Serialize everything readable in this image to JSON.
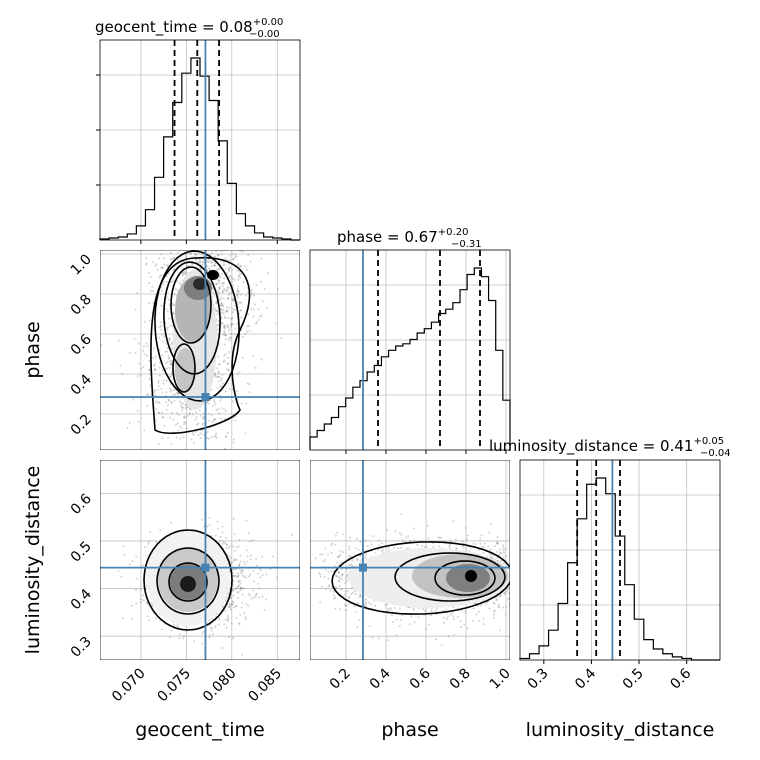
{
  "chart_data": {
    "type": "corner",
    "parameters": [
      "geocent_time",
      "phase",
      "luminosity_distance"
    ],
    "axis_labels": [
      "geocent_time",
      "phase",
      "luminosity_distance"
    ],
    "titles": [
      {
        "text": "geocent_time = 0.08",
        "sup": "+0.00",
        "sub": "−0.00"
      },
      {
        "text": "phase = 0.67",
        "sup": "+0.20",
        "sub": "−0.31"
      },
      {
        "text": "luminosity_distance = 0.41",
        "sup": "+0.05",
        "sub": "−0.04"
      }
    ],
    "ranges": [
      [
        0.0655,
        0.0875
      ],
      [
        0.02,
        1.02
      ],
      [
        0.25,
        0.67
      ]
    ],
    "ticks": {
      "geocent_time": [
        "0.070",
        "0.075",
        "0.080",
        "0.085"
      ],
      "phase": [
        "0.2",
        "0.4",
        "0.6",
        "0.8",
        "1.0"
      ],
      "luminosity_distance": [
        "0.3",
        "0.4",
        "0.5",
        "0.6"
      ]
    },
    "truths": [
      0.0771,
      0.285,
      0.444
    ],
    "quantiles": [
      [
        0.0737,
        0.0762,
        0.0786
      ],
      [
        0.36,
        0.67,
        0.87
      ],
      [
        0.37,
        0.41,
        0.46
      ]
    ],
    "histograms": [
      {
        "parameter": "geocent_time",
        "bins": [
          0.0655,
          0.0875
        ],
        "counts": [
          1,
          2,
          3,
          6,
          14,
          30,
          62,
          102,
          136,
          165,
          180,
          162,
          138,
          98,
          56,
          26,
          14,
          7,
          3,
          2,
          1,
          0
        ]
      },
      {
        "parameter": "phase",
        "bins": [
          0.02,
          1.02
        ],
        "counts": [
          6,
          9,
          12,
          15,
          20,
          24,
          29,
          32,
          36,
          39,
          43,
          46,
          48,
          49,
          51,
          54,
          56,
          59,
          63,
          65,
          68,
          74,
          81,
          84,
          80,
          69,
          46,
          23
        ]
      },
      {
        "parameter": "luminosity_distance",
        "bins": [
          0.25,
          0.67
        ],
        "counts": [
          1,
          4,
          9,
          19,
          36,
          62,
          90,
          112,
          116,
          106,
          79,
          48,
          26,
          13,
          7,
          4,
          2,
          1,
          0,
          0,
          0
        ]
      }
    ],
    "density_2d": [
      {
        "x": "geocent_time",
        "y": "phase",
        "mode": [
          0.076,
          0.84
        ],
        "note": "elongated vertical ridge peaking near phase 0.85"
      },
      {
        "x": "geocent_time",
        "y": "luminosity_distance",
        "mode": [
          0.076,
          0.41
        ]
      },
      {
        "x": "phase",
        "y": "luminosity_distance",
        "mode": [
          0.82,
          0.43
        ]
      }
    ],
    "grid": true,
    "colors": {
      "truth": "#4682b4",
      "contour": "#000000",
      "scatter": "#7f7f7f",
      "grid": "#c0c0c0"
    }
  }
}
